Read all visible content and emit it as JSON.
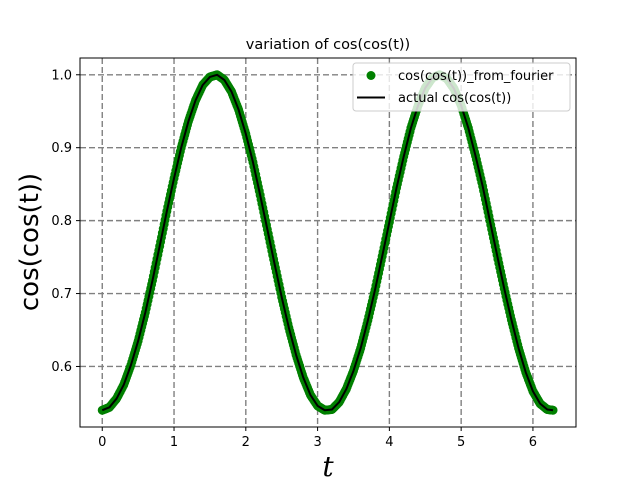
{
  "chart_data": {
    "type": "line",
    "title": "variation of cos(cos(t))",
    "xlabel": "t",
    "ylabel": "cos(cos(t))",
    "xlim": [
      -0.31,
      6.6
    ],
    "ylim": [
      0.517,
      1.023
    ],
    "xticks": [
      0,
      1,
      2,
      3,
      4,
      5,
      6
    ],
    "xtick_labels": [
      "0",
      "1",
      "2",
      "3",
      "4",
      "5",
      "6"
    ],
    "yticks": [
      0.6,
      0.7,
      0.8,
      0.9,
      1.0
    ],
    "ytick_labels": [
      "0.6",
      "0.7",
      "0.8",
      "0.9",
      "1.0"
    ],
    "grid": true,
    "legend_position": "top-right",
    "series": [
      {
        "name": "cos(cos(t))_from_fourier",
        "style": "markers",
        "color": "#008000",
        "x": [
          0.0,
          0.1,
          0.2,
          0.3,
          0.4,
          0.5,
          0.6,
          0.7,
          0.8,
          0.9,
          1.0,
          1.1,
          1.2,
          1.3,
          1.4,
          1.5,
          1.6,
          1.7,
          1.8,
          1.9,
          2.0,
          2.1,
          2.2,
          2.3,
          2.4,
          2.5,
          2.6,
          2.7,
          2.8,
          2.9,
          3.0,
          3.1,
          3.2,
          3.3,
          3.4,
          3.5,
          3.6,
          3.7,
          3.8,
          3.9,
          4.0,
          4.1,
          4.2,
          4.3,
          4.4,
          4.5,
          4.6,
          4.7,
          4.8,
          4.9,
          5.0,
          5.1,
          5.2,
          5.3,
          5.4,
          5.5,
          5.6,
          5.7,
          5.8,
          5.9,
          6.0,
          6.1,
          6.2,
          6.28
        ],
        "y": [
          0.54,
          0.544,
          0.556,
          0.575,
          0.602,
          0.635,
          0.674,
          0.718,
          0.765,
          0.813,
          0.858,
          0.9,
          0.936,
          0.965,
          0.986,
          0.997,
          1.0,
          0.993,
          0.977,
          0.952,
          0.919,
          0.88,
          0.835,
          0.788,
          0.741,
          0.695,
          0.653,
          0.616,
          0.585,
          0.561,
          0.546,
          0.54,
          0.541,
          0.551,
          0.569,
          0.594,
          0.625,
          0.663,
          0.705,
          0.751,
          0.798,
          0.845,
          0.888,
          0.927,
          0.958,
          0.982,
          0.996,
          1.0,
          0.995,
          0.981,
          0.958,
          0.927,
          0.889,
          0.847,
          0.8,
          0.753,
          0.707,
          0.664,
          0.625,
          0.592,
          0.566,
          0.549,
          0.541,
          0.54
        ]
      },
      {
        "name": "actual cos(cos(t))",
        "style": "line",
        "color": "#000000",
        "x": [
          0.0,
          0.1,
          0.2,
          0.3,
          0.4,
          0.5,
          0.6,
          0.7,
          0.8,
          0.9,
          1.0,
          1.1,
          1.2,
          1.3,
          1.4,
          1.5,
          1.6,
          1.7,
          1.8,
          1.9,
          2.0,
          2.1,
          2.2,
          2.3,
          2.4,
          2.5,
          2.6,
          2.7,
          2.8,
          2.9,
          3.0,
          3.1,
          3.2,
          3.3,
          3.4,
          3.5,
          3.6,
          3.7,
          3.8,
          3.9,
          4.0,
          4.1,
          4.2,
          4.3,
          4.4,
          4.5,
          4.6,
          4.7,
          4.8,
          4.9,
          5.0,
          5.1,
          5.2,
          5.3,
          5.4,
          5.5,
          5.6,
          5.7,
          5.8,
          5.9,
          6.0,
          6.1,
          6.2,
          6.28
        ],
        "y": [
          0.54,
          0.544,
          0.556,
          0.575,
          0.602,
          0.635,
          0.674,
          0.718,
          0.765,
          0.813,
          0.858,
          0.9,
          0.936,
          0.965,
          0.986,
          0.997,
          1.0,
          0.993,
          0.977,
          0.952,
          0.919,
          0.88,
          0.835,
          0.788,
          0.741,
          0.695,
          0.653,
          0.616,
          0.585,
          0.561,
          0.546,
          0.54,
          0.541,
          0.551,
          0.569,
          0.594,
          0.625,
          0.663,
          0.705,
          0.751,
          0.798,
          0.845,
          0.888,
          0.927,
          0.958,
          0.982,
          0.996,
          1.0,
          0.995,
          0.981,
          0.958,
          0.927,
          0.889,
          0.847,
          0.8,
          0.753,
          0.707,
          0.664,
          0.625,
          0.592,
          0.566,
          0.549,
          0.541,
          0.54
        ]
      }
    ]
  }
}
